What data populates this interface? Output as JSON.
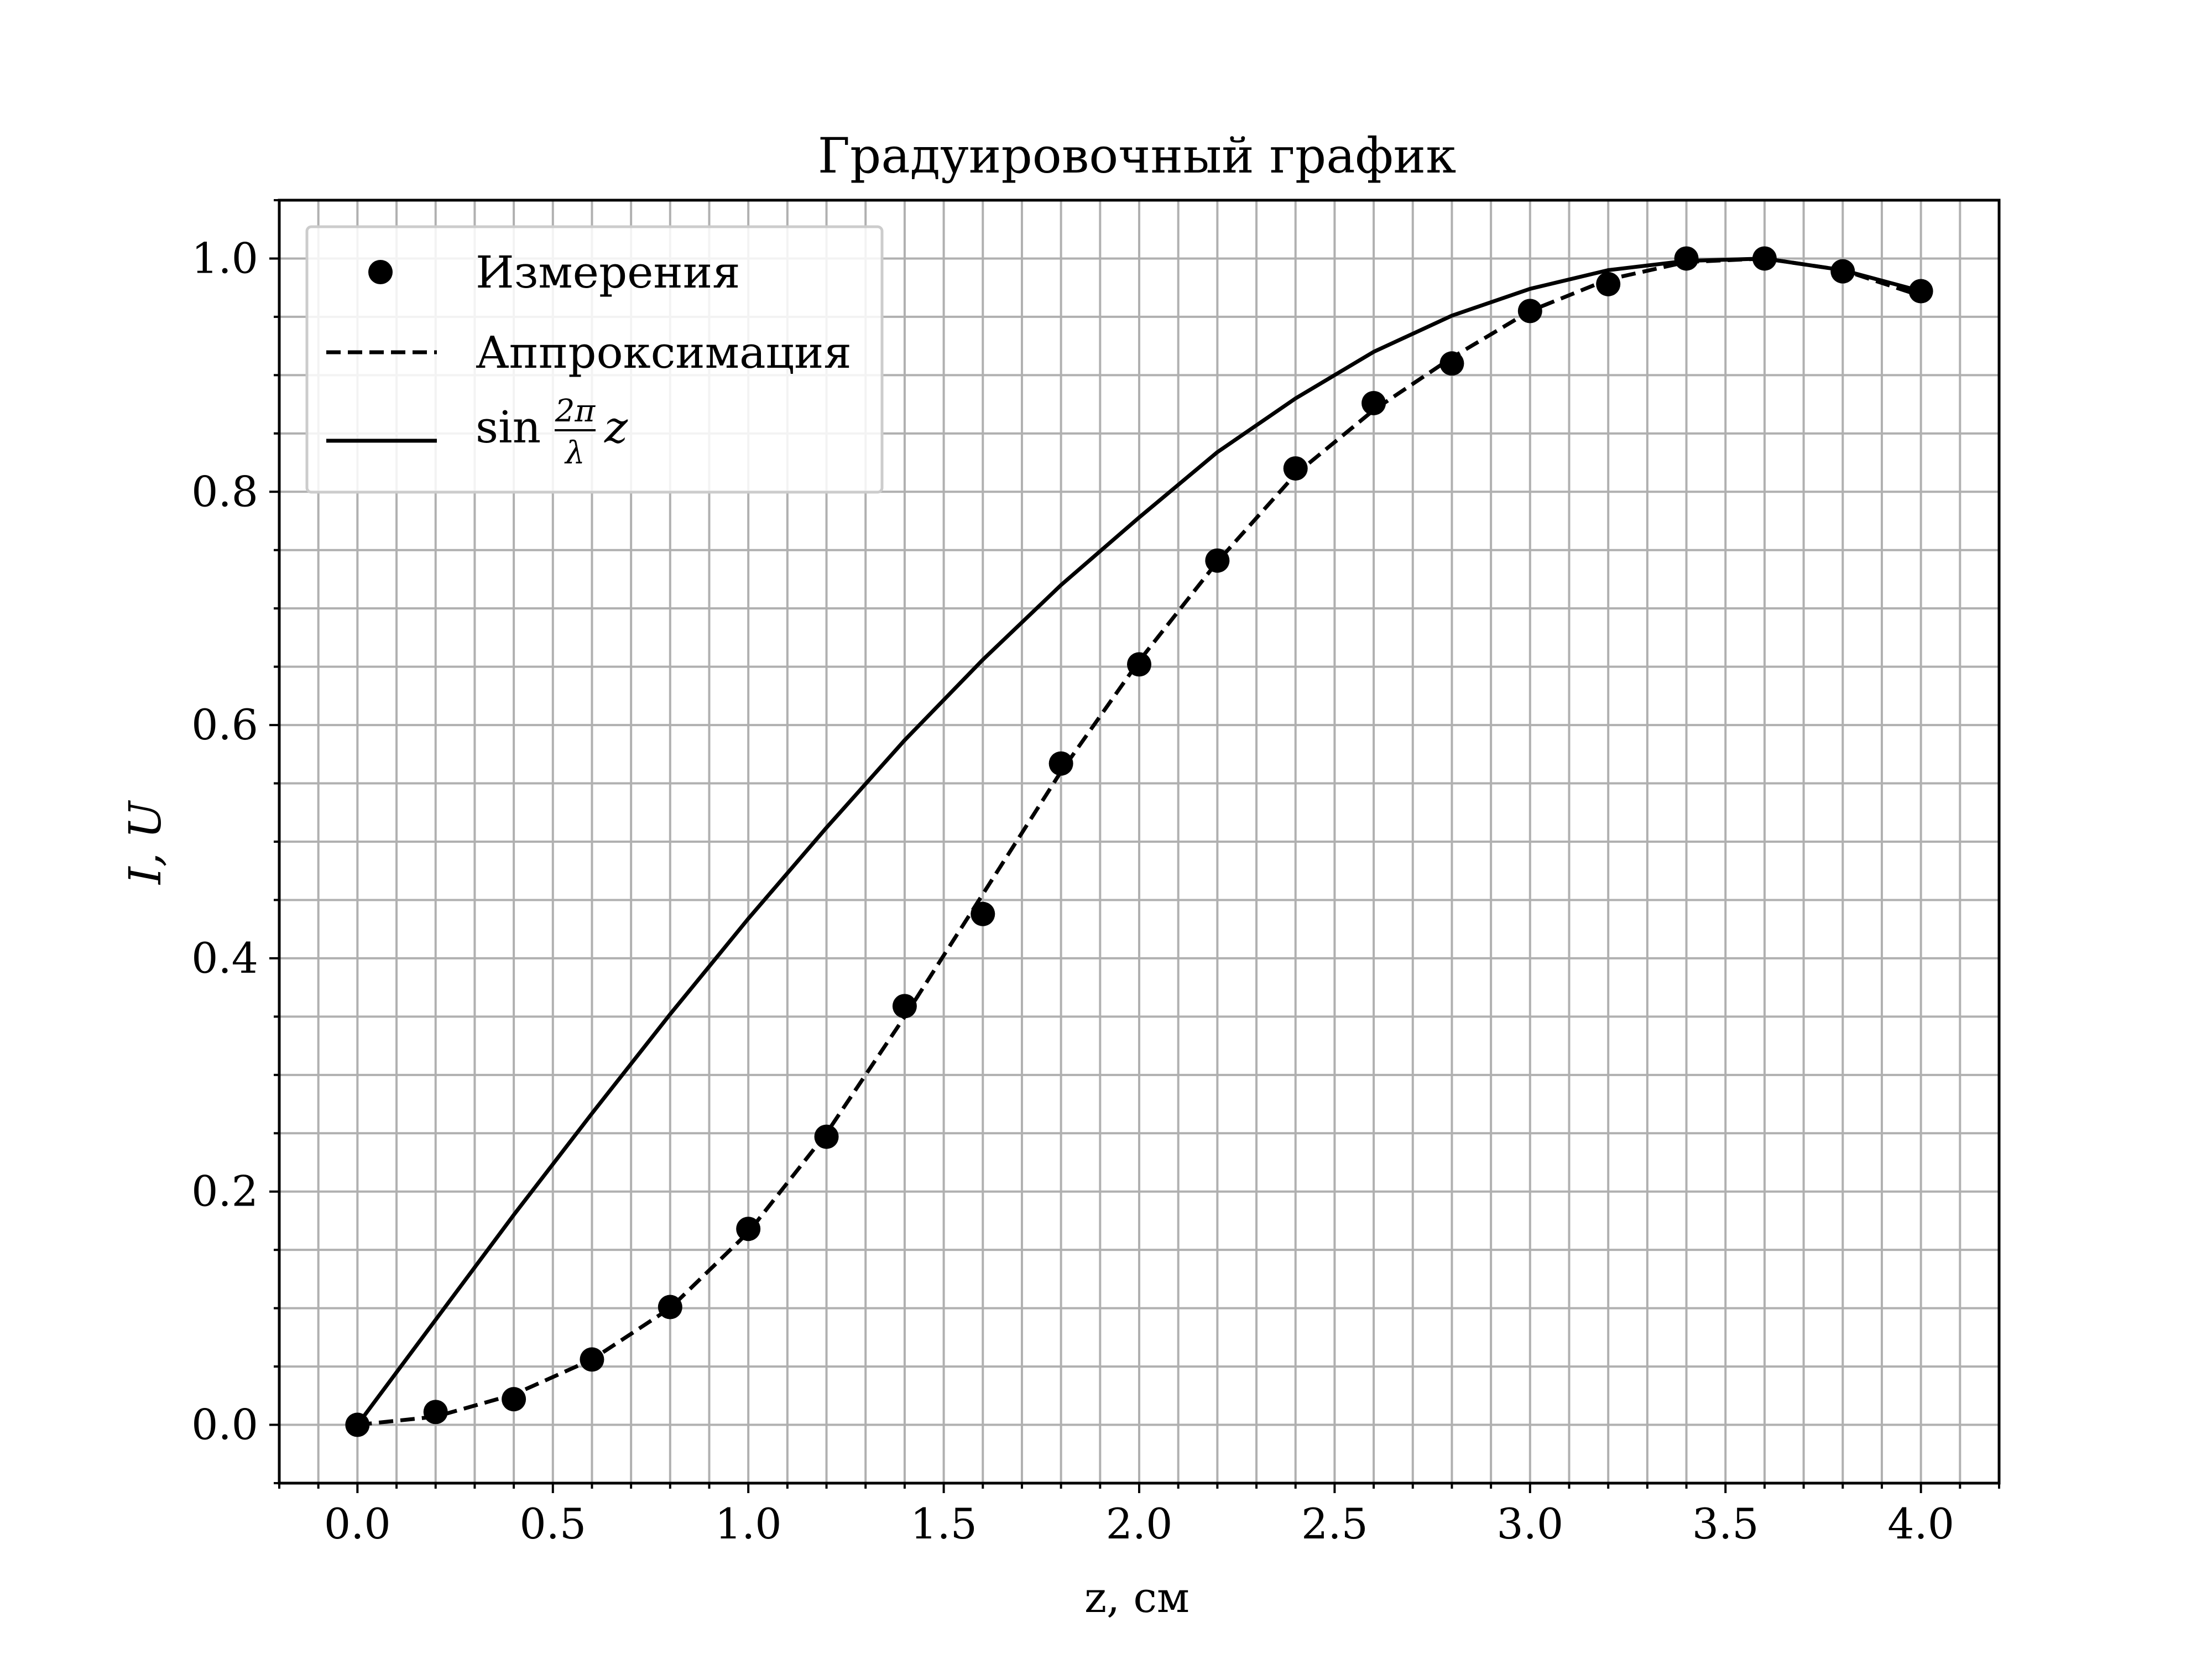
{
  "chart_data": {
    "type": "line",
    "title": "Градуировочный график",
    "xlabel": "z, см",
    "ylabel": "I, U",
    "xlim": [
      -0.2,
      4.2
    ],
    "ylim": [
      -0.05,
      1.05
    ],
    "x_ticks": [
      0.0,
      0.5,
      1.0,
      1.5,
      2.0,
      2.5,
      3.0,
      3.5,
      4.0
    ],
    "x_tick_labels": [
      "0.0",
      "0.5",
      "1.0",
      "1.5",
      "2.0",
      "2.5",
      "3.0",
      "3.5",
      "4.0"
    ],
    "y_ticks": [
      0.0,
      0.2,
      0.4,
      0.6,
      0.8,
      1.0
    ],
    "y_tick_labels": [
      "0.0",
      "0.2",
      "0.4",
      "0.6",
      "0.8",
      "1.0"
    ],
    "grid": true,
    "legend_position": "top-left",
    "colors": {
      "line": "#000000",
      "grid": "#b0b0b0",
      "background": "#ffffff"
    },
    "series": [
      {
        "name": "Измерения",
        "style": "markers",
        "x": [
          0.0,
          0.2,
          0.4,
          0.6,
          0.8,
          1.0,
          1.2,
          1.4,
          1.6,
          1.8,
          2.0,
          2.2,
          2.4,
          2.6,
          2.8,
          3.0,
          3.2,
          3.4,
          3.6,
          3.8,
          4.0
        ],
        "y": [
          0.0,
          0.011,
          0.022,
          0.056,
          0.101,
          0.168,
          0.247,
          0.359,
          0.438,
          0.567,
          0.652,
          0.741,
          0.82,
          0.876,
          0.91,
          0.955,
          0.978,
          1.0,
          1.0,
          0.989,
          0.972
        ]
      },
      {
        "name": "Аппроксимация",
        "style": "dashed",
        "x": [
          0.0,
          0.2,
          0.4,
          0.6,
          0.8,
          1.0,
          1.2,
          1.4,
          1.6,
          1.8,
          2.0,
          2.2,
          2.4,
          2.6,
          2.8,
          3.0,
          3.2,
          3.4,
          3.6,
          3.8,
          4.0
        ],
        "y": [
          0.0,
          0.007,
          0.026,
          0.056,
          0.1,
          0.165,
          0.25,
          0.35,
          0.455,
          0.56,
          0.655,
          0.74,
          0.815,
          0.87,
          0.915,
          0.955,
          0.982,
          0.997,
          1.0,
          0.99,
          0.968
        ]
      },
      {
        "name": "sin 2π/λ z",
        "style": "solid",
        "x": [
          0.0,
          0.2,
          0.4,
          0.6,
          0.8,
          1.0,
          1.2,
          1.4,
          1.6,
          1.8,
          2.0,
          2.2,
          2.4,
          2.6,
          2.8,
          3.0,
          3.2,
          3.4,
          3.6,
          3.8,
          4.0
        ],
        "y": [
          0.0,
          0.09,
          0.18,
          0.267,
          0.352,
          0.434,
          0.512,
          0.587,
          0.656,
          0.72,
          0.778,
          0.834,
          0.88,
          0.92,
          0.951,
          0.974,
          0.99,
          0.998,
          1.0,
          0.99,
          0.972
        ]
      }
    ],
    "legend": {
      "items": [
        {
          "label": "Измерения",
          "style": "markers"
        },
        {
          "label": "Аппроксимация",
          "style": "dashed"
        },
        {
          "label_prefix": "sin",
          "frac_num": "2π",
          "frac_den": "λ",
          "label_suffix": "z",
          "style": "solid"
        }
      ]
    }
  }
}
